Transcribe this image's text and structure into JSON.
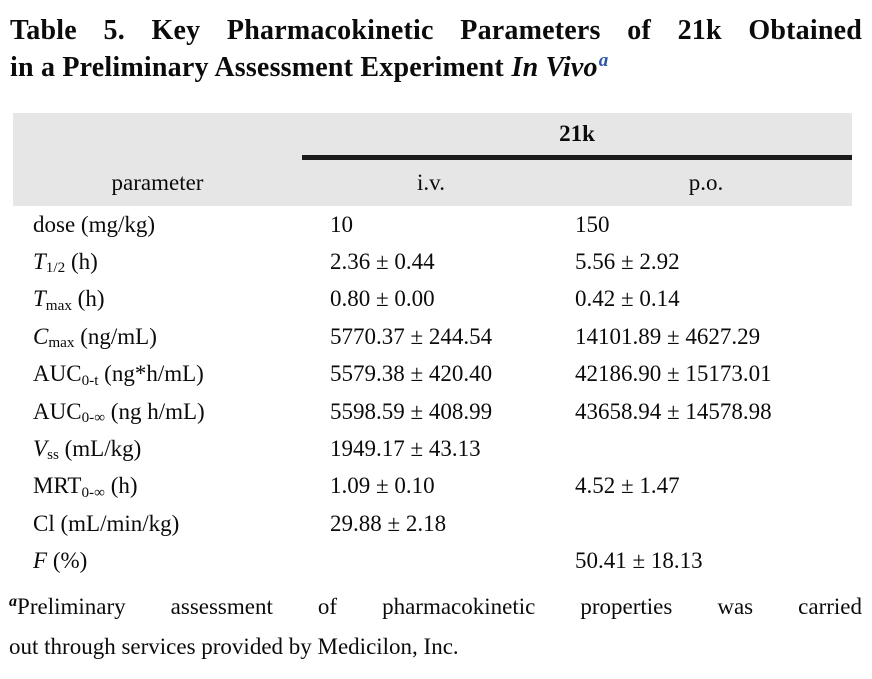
{
  "colors": {
    "header_shade": "#e6e6e6",
    "rule_black": "#1b1b1b",
    "footnote_marker_blue": "#2b57a8",
    "text": "#0b0b0b"
  },
  "title": {
    "line1": "Table 5. Key Pharmacokinetic Parameters of 21k Obtained",
    "line2_text": "in a Preliminary Assessment Experiment",
    "line2_italic": "In Vivo",
    "footnote_marker": "a"
  },
  "table": {
    "compound_header": "21k",
    "column_headers": {
      "parameter": "parameter",
      "iv": "i.v.",
      "po": "p.o."
    },
    "rows": [
      {
        "sym": "dose",
        "sym_class": "",
        "sub": "",
        "unit": " (mg/kg)",
        "iv": "10",
        "po": "150"
      },
      {
        "sym": "T",
        "sym_class": "it",
        "sub": "1/2",
        "unit": " (h)",
        "iv": "2.36 ± 0.44",
        "po": "5.56 ± 2.92"
      },
      {
        "sym": "T",
        "sym_class": "it",
        "sub": "max",
        "unit": " (h)",
        "iv": "0.80 ± 0.00",
        "po": "0.42 ± 0.14"
      },
      {
        "sym": "C",
        "sym_class": "it",
        "sub": "max",
        "unit": " (ng/mL)",
        "iv": "5770.37 ± 244.54",
        "po": "14101.89 ± 4627.29"
      },
      {
        "sym": "AUC",
        "sym_class": "",
        "sub": "0-t",
        "unit": " (ng*h/mL)",
        "iv": "5579.38 ± 420.40",
        "po": "42186.90 ± 15173.01"
      },
      {
        "sym": "AUC",
        "sym_class": "",
        "sub": "0-∞",
        "unit": " (ng h/mL)",
        "iv": "5598.59 ± 408.99",
        "po": "43658.94 ± 14578.98"
      },
      {
        "sym": "V",
        "sym_class": "it",
        "sub": "ss",
        "unit": " (mL/kg)",
        "iv": "1949.17 ± 43.13",
        "po": ""
      },
      {
        "sym": "MRT",
        "sym_class": "",
        "sub": "0-∞",
        "unit": " (h)",
        "iv": "1.09 ± 0.10",
        "po": "4.52 ± 1.47"
      },
      {
        "sym": "Cl",
        "sym_class": "",
        "sub": "",
        "unit": " (mL/min/kg)",
        "iv": "29.88 ± 2.18",
        "po": ""
      },
      {
        "sym": "F",
        "sym_class": "it",
        "sub": "",
        "unit": " (%)",
        "iv": "",
        "po": "50.41 ± 18.13"
      }
    ]
  },
  "footnote": {
    "marker": "a",
    "line1": "Preliminary assessment of pharmacokinetic properties was carried",
    "line2": "out through services provided by Medicilon, Inc."
  }
}
